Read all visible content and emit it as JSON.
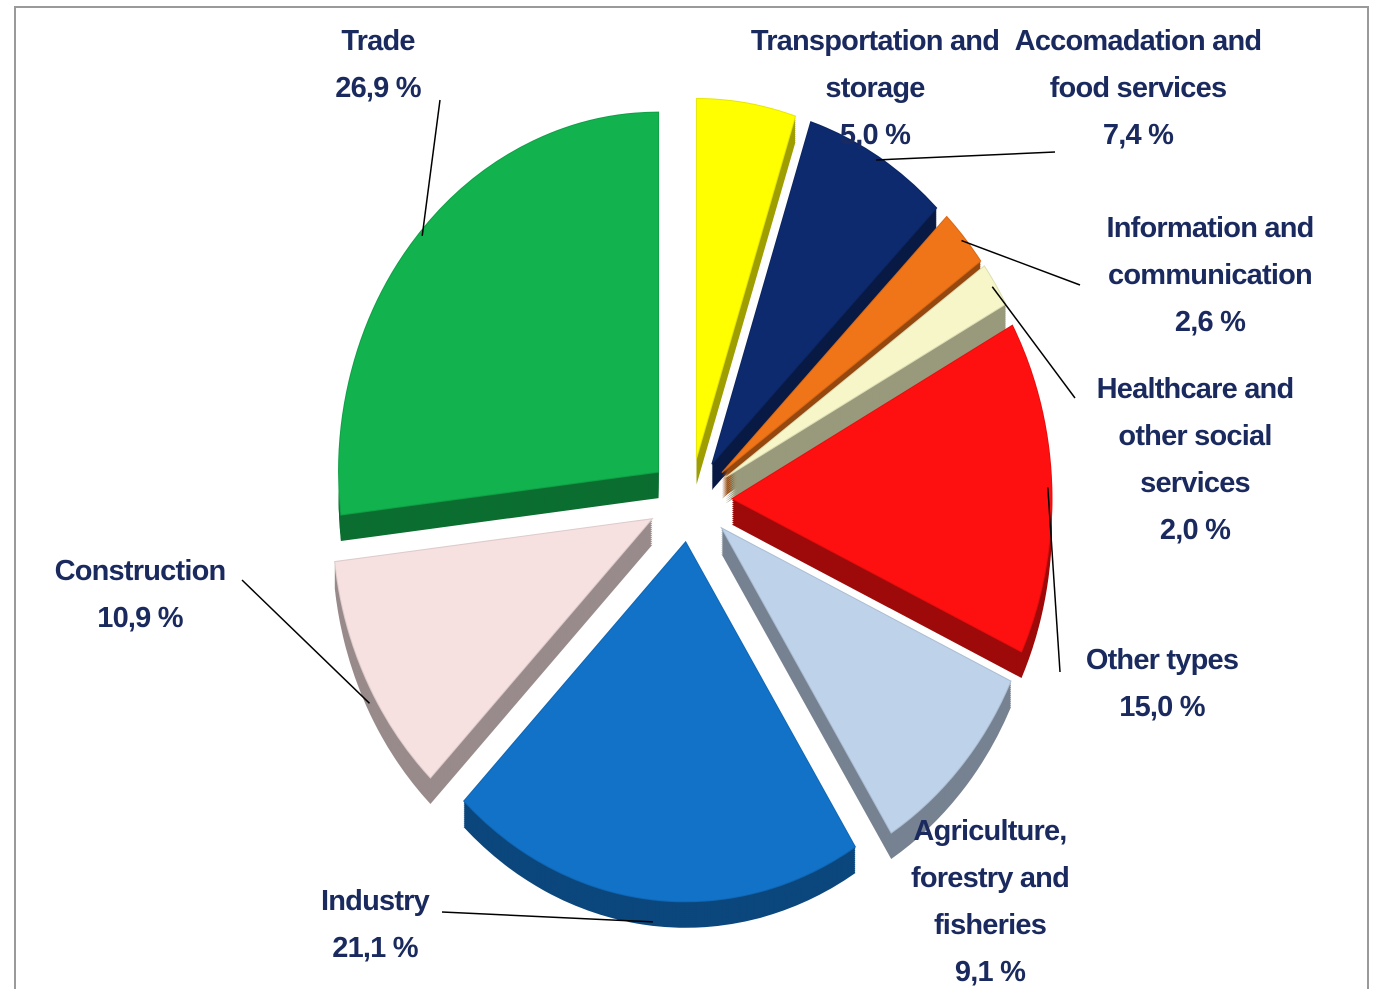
{
  "chart_data": {
    "type": "pie",
    "categories": [
      "Transportation and storage",
      "Accomadation and food services",
      "Information and communication",
      "Healthcare and other social services",
      "Other types",
      "Agriculture, forestry and fisheries",
      "Industry",
      "Construction",
      "Trade"
    ],
    "values": [
      5.0,
      7.4,
      2.6,
      2.0,
      15.0,
      9.1,
      21.1,
      10.9,
      26.9
    ],
    "value_labels": [
      "5,0 %",
      "7,4 %",
      "2,6 %",
      "2,0 %",
      "15,0 %",
      "9,1 %",
      "21,1 %",
      "10,9 %",
      "26,9 %"
    ],
    "colors": [
      "#ffff00",
      "#0d2a6e",
      "#f07418",
      "#f6f6c8",
      "#ff1010",
      "#bed2ea",
      "#1272c8",
      "#f6e0e0",
      "#12b24e"
    ]
  }
}
